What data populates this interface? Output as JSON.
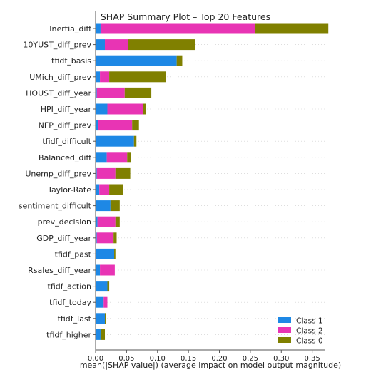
{
  "chart_data": {
    "type": "bar",
    "orientation": "horizontal",
    "stacked": true,
    "title": "SHAP Summary Plot – Top 20 Features",
    "xlabel": "mean(|SHAP value|) (average impact on model output magnitude)",
    "ylabel": "",
    "xlim": [
      0,
      0.37
    ],
    "xticks": [
      "0.00",
      "0.05",
      "0.10",
      "0.15",
      "0.20",
      "0.25",
      "0.30",
      "0.35"
    ],
    "xtick_values": [
      0,
      0.05,
      0.1,
      0.15,
      0.2,
      0.25,
      0.3,
      0.35
    ],
    "legend_position": "bottom-right",
    "categories": [
      "Inertia_diff",
      "10YUST_diff_prev",
      "tfidf_basis",
      "UMich_diff_prev",
      "HOUST_diff_year",
      "HPI_diff_year",
      "NFP_diff_prev",
      "tfidf_difficult",
      "Balanced_diff",
      "Unemp_diff_prev",
      "Taylor-Rate",
      "sentiment_difficult",
      "prev_decision",
      "GDP_diff_year",
      "tfidf_past",
      "Rsales_diff_year",
      "tfidf_action",
      "tfidf_today",
      "tfidf_last",
      "tfidf_higher"
    ],
    "series": [
      {
        "name": "Class 1",
        "color": "#1e88e5",
        "values": [
          0.008,
          0.015,
          0.131,
          0.007,
          0.002,
          0.019,
          0.004,
          0.062,
          0.018,
          0.002,
          0.006,
          0.024,
          0.003,
          0.002,
          0.03,
          0.007,
          0.019,
          0.013,
          0.015,
          0.008
        ]
      },
      {
        "name": "Class 2",
        "color": "#e834b4",
        "values": [
          0.25,
          0.037,
          0.0,
          0.015,
          0.045,
          0.058,
          0.055,
          0.0,
          0.033,
          0.03,
          0.016,
          0.0,
          0.029,
          0.027,
          0.0,
          0.024,
          0.0,
          0.006,
          0.0,
          0.0
        ]
      },
      {
        "name": "Class 0",
        "color": "#808000",
        "values": [
          0.118,
          0.109,
          0.009,
          0.091,
          0.043,
          0.004,
          0.011,
          0.004,
          0.006,
          0.024,
          0.022,
          0.015,
          0.007,
          0.005,
          0.002,
          0.0,
          0.003,
          0.0,
          0.002,
          0.007
        ]
      }
    ]
  }
}
